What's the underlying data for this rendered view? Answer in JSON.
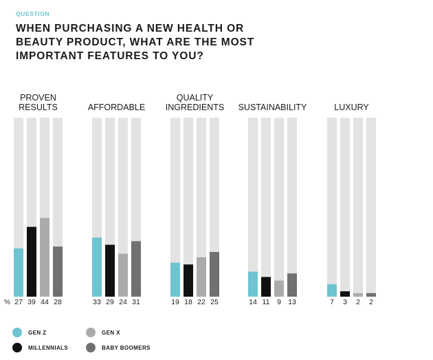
{
  "header": {
    "eyebrow": "QUESTION",
    "title": "WHEN PURCHASING A NEW HEALTH OR BEAUTY PRODUCT, WHAT ARE THE MOST IMPORTANT FEATURES TO YOU?"
  },
  "chart_data": {
    "type": "bar",
    "categories": [
      [
        "PROVEN",
        "RESULTS"
      ],
      [
        "AFFORDABLE"
      ],
      [
        "QUALITY",
        "INGREDIENTS"
      ],
      [
        "SUSTAINABILITY"
      ],
      [
        "LUXURY"
      ]
    ],
    "unit_label": "%",
    "ylim": [
      0,
      100
    ],
    "grid": false,
    "legend_position": "bottom-left",
    "series": [
      {
        "name": "GEN Z",
        "color": "#6ec4d0",
        "values": [
          27,
          33,
          19,
          14,
          7
        ]
      },
      {
        "name": "MILLENNIALS",
        "color": "#111111",
        "values": [
          39,
          29,
          18,
          11,
          3
        ]
      },
      {
        "name": "GEN X",
        "color": "#ababab",
        "values": [
          44,
          24,
          22,
          9,
          2
        ]
      },
      {
        "name": "BABY BOOMERS",
        "color": "#707070",
        "values": [
          28,
          31,
          25,
          13,
          2
        ]
      }
    ],
    "track_color": "#e3e3e3"
  }
}
